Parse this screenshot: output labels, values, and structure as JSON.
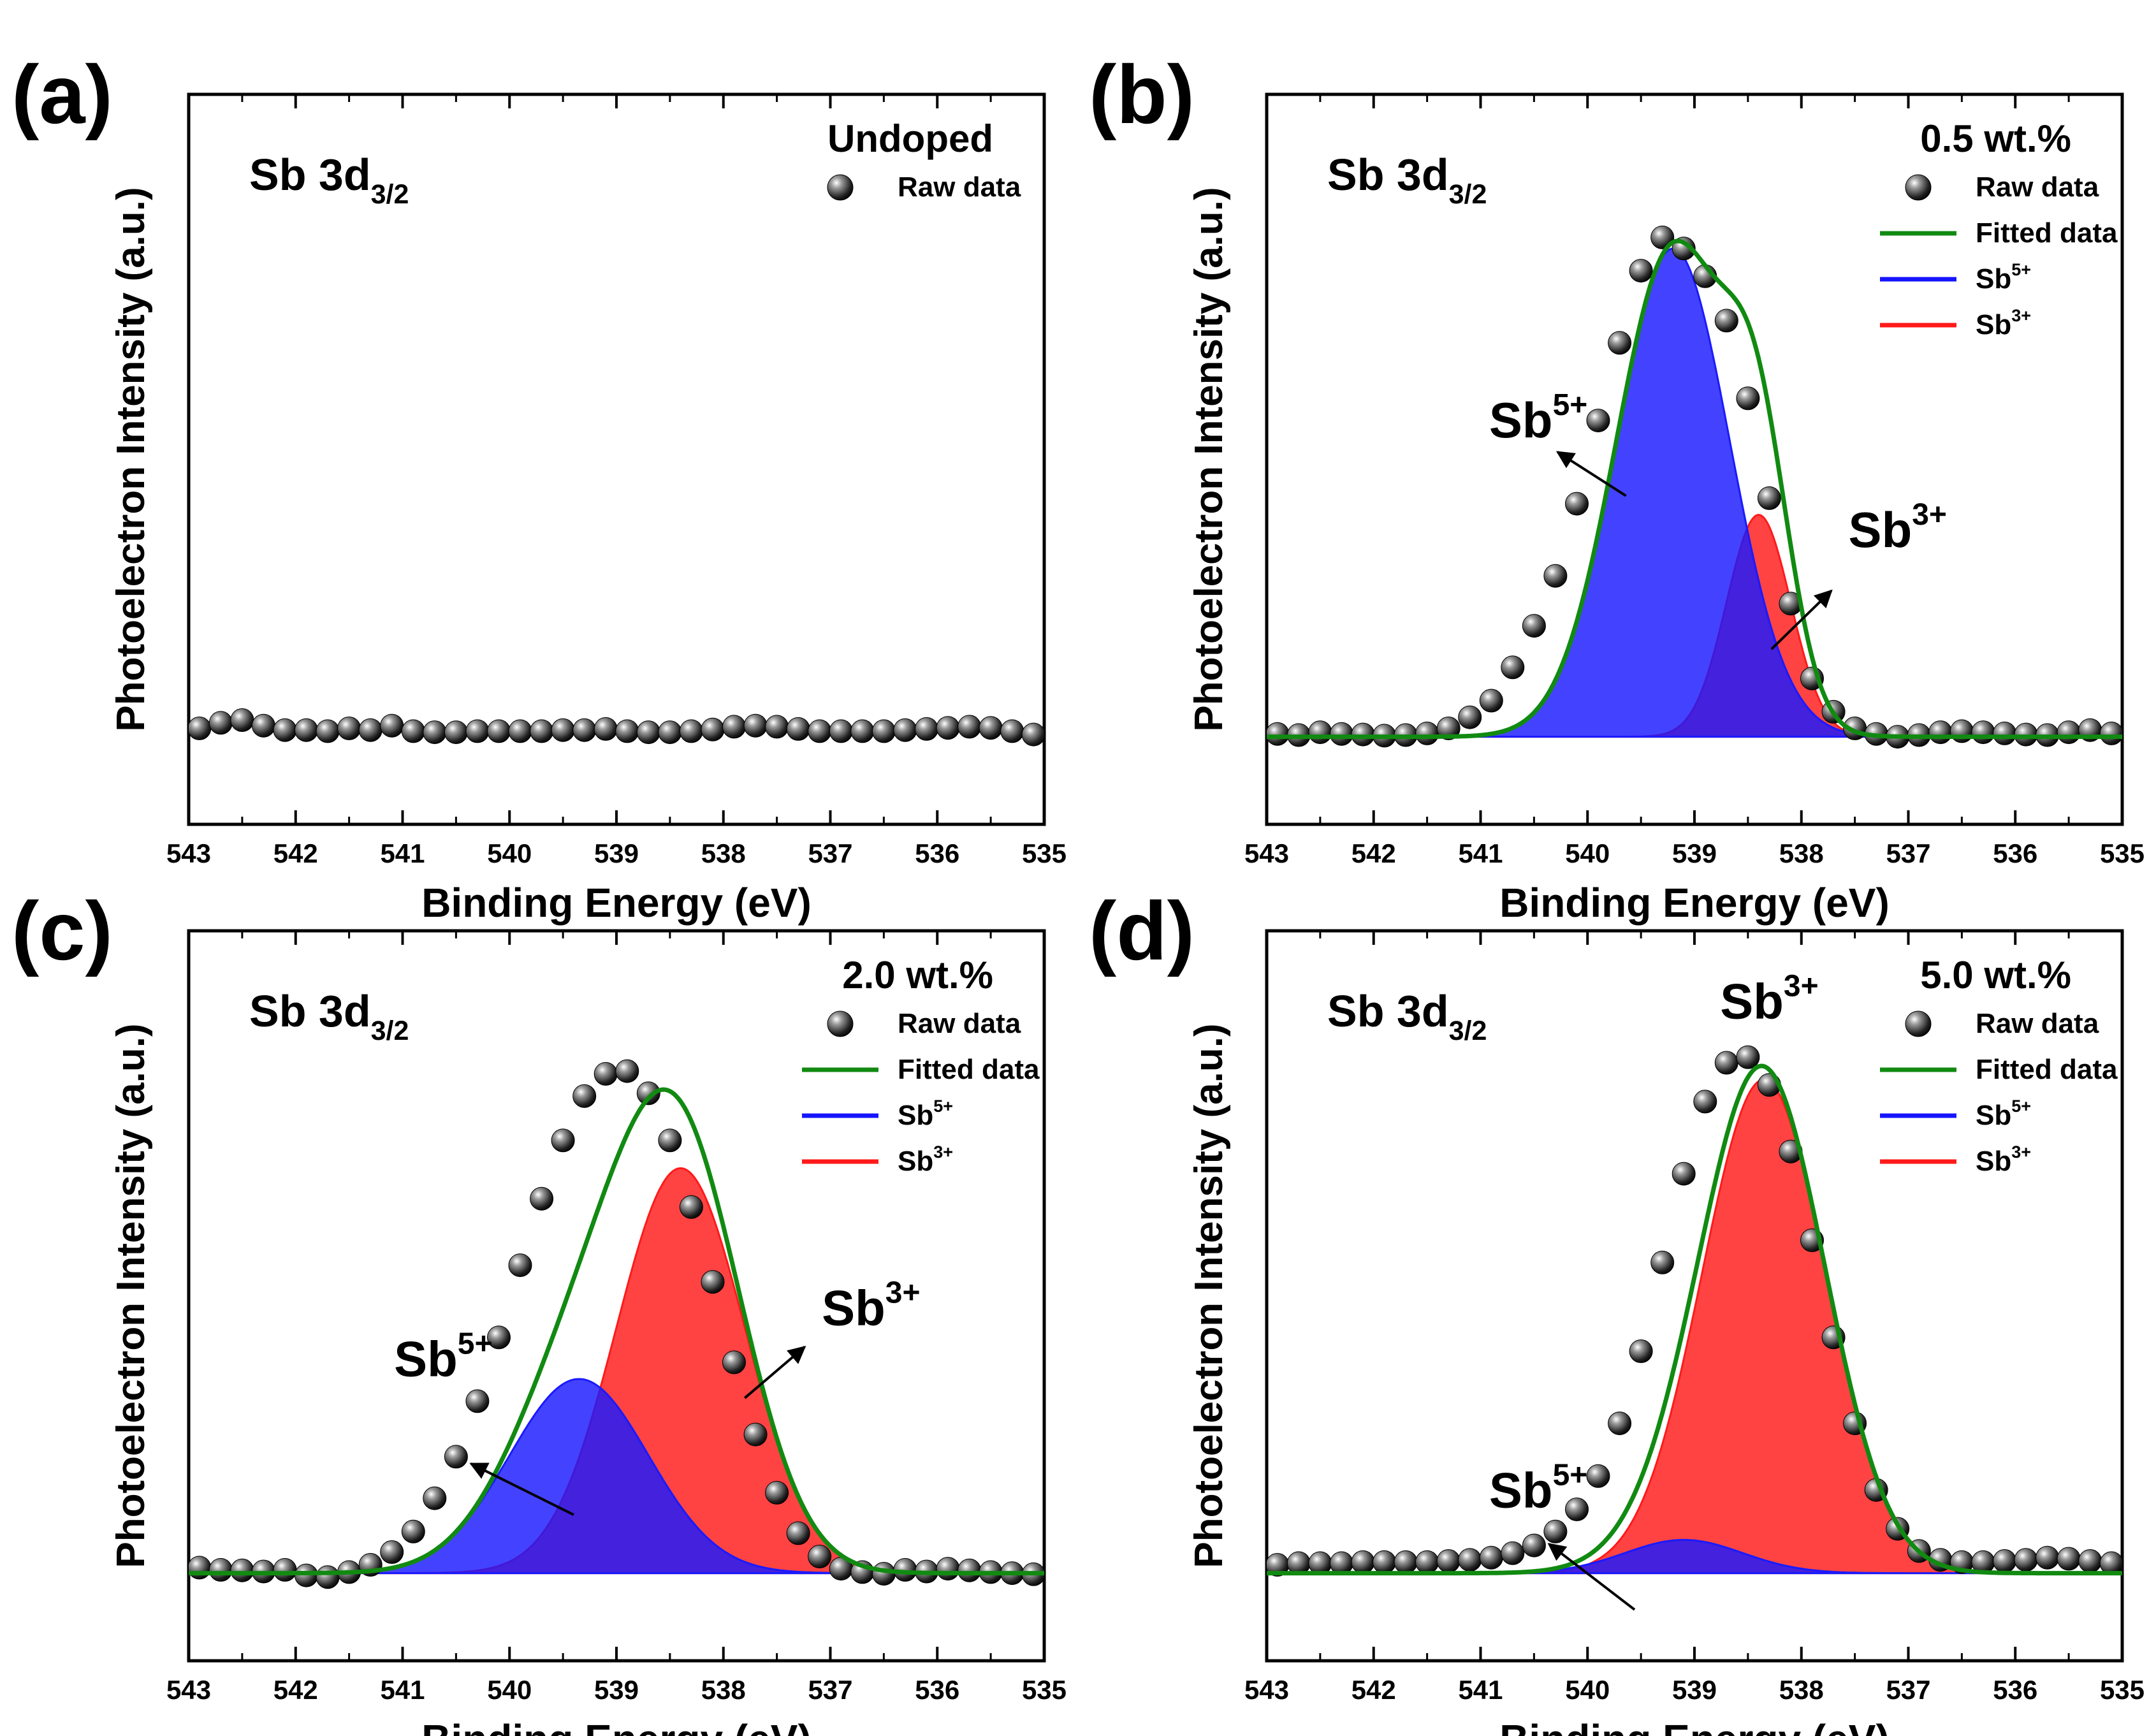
{
  "chart_data": [
    {
      "panel": "(a)",
      "type": "scatter",
      "title": "Undoped",
      "peak_label_main": "Sb 3d",
      "peak_label_sub": "3/2",
      "xlabel": "Binding Energy (eV)",
      "ylabel": "Photoelectron Intensity (a.u.)",
      "xlim": [
        543,
        535
      ],
      "ylim": [
        0,
        100
      ],
      "xticks": [
        "543",
        "542",
        "541",
        "540",
        "539",
        "538",
        "537",
        "536",
        "535"
      ],
      "legend": [
        {
          "label": "Raw data",
          "kind": "marker"
        }
      ],
      "raw_data": {
        "x": [
          542.9,
          542.7,
          542.5,
          542.3,
          542.1,
          541.9,
          541.7,
          541.5,
          541.3,
          541.1,
          540.9,
          540.7,
          540.5,
          540.3,
          540.1,
          539.9,
          539.7,
          539.5,
          539.3,
          539.1,
          538.9,
          538.7,
          538.5,
          538.3,
          538.1,
          537.9,
          537.7,
          537.5,
          537.3,
          537.1,
          536.9,
          536.7,
          536.5,
          536.3,
          536.1,
          535.9,
          535.7,
          535.5,
          535.3,
          535.1
        ],
        "y": [
          1.5,
          2.5,
          3.0,
          2.0,
          1.2,
          1.2,
          1.0,
          1.5,
          1.2,
          2.0,
          1.0,
          0.8,
          0.8,
          1.0,
          1.0,
          1.0,
          1.0,
          1.2,
          1.2,
          1.4,
          1.0,
          0.8,
          0.8,
          1.0,
          1.3,
          1.8,
          2.0,
          1.8,
          1.4,
          1.0,
          1.0,
          1.0,
          1.0,
          1.2,
          1.4,
          1.6,
          1.8,
          1.6,
          1.0,
          0.4
        ]
      }
    },
    {
      "panel": "(b)",
      "type": "scatter",
      "title": "0.5 wt.%",
      "peak_label_main": "Sb 3d",
      "peak_label_sub": "3/2",
      "xlabel": "Binding Energy (eV)",
      "ylabel": "Photoelectron Intensity (a.u.)",
      "xlim": [
        543,
        535
      ],
      "ylim": [
        0,
        100
      ],
      "xticks": [
        "543",
        "542",
        "541",
        "540",
        "539",
        "538",
        "537",
        "536",
        "535"
      ],
      "legend": [
        {
          "label": "Raw data",
          "kind": "marker",
          "sup": ""
        },
        {
          "label": "Fitted data",
          "kind": "line",
          "color": "#118a11",
          "sup": ""
        },
        {
          "label": "Sb",
          "kind": "line",
          "color": "#1515ff",
          "sup": "5+"
        },
        {
          "label": "Sb",
          "kind": "line",
          "color": "#ff1a1a",
          "sup": "3+"
        }
      ],
      "components": [
        {
          "name": "Sb5+",
          "center": 539.2,
          "height": 88,
          "sigma": 0.53,
          "color": "#1a1aff"
        },
        {
          "name": "Sb3+",
          "center": 538.4,
          "height": 40,
          "sigma": 0.3,
          "color": "#ff1a1a"
        }
      ],
      "raw_data": {
        "x": [
          542.9,
          542.7,
          542.5,
          542.3,
          542.1,
          541.9,
          541.7,
          541.5,
          541.3,
          541.1,
          540.9,
          540.7,
          540.5,
          540.3,
          540.1,
          539.9,
          539.7,
          539.5,
          539.3,
          539.1,
          538.9,
          538.7,
          538.5,
          538.3,
          538.1,
          537.9,
          537.7,
          537.5,
          537.3,
          537.1,
          536.9,
          536.7,
          536.5,
          536.3,
          536.1,
          535.9,
          535.7,
          535.5,
          535.3,
          535.1
        ],
        "y": [
          0.5,
          0.3,
          0.8,
          0.5,
          0.4,
          0.2,
          0.3,
          0.6,
          1.5,
          3.5,
          6.5,
          12.5,
          20.0,
          29.0,
          42.0,
          57.0,
          71.0,
          84.0,
          90.0,
          88.0,
          83.0,
          75.0,
          61.0,
          43.0,
          24.0,
          10.5,
          4.5,
          1.5,
          0.5,
          0.0,
          0.3,
          0.8,
          1.0,
          0.8,
          0.6,
          0.4,
          0.3,
          0.8,
          1.2,
          0.6
        ]
      },
      "annotations": [
        {
          "text": "Sb",
          "sup": "5+",
          "points_to": "Sb5+ component"
        },
        {
          "text": "Sb",
          "sup": "3+",
          "points_to": "Sb3+ component"
        }
      ]
    },
    {
      "panel": "(c)",
      "type": "scatter",
      "title": "2.0 wt.%",
      "peak_label_main": "Sb 3d",
      "peak_label_sub": "3/2",
      "xlabel": "Binding Energy (eV)",
      "ylabel": "Photoelectron Intensity (a.u.)",
      "xlim": [
        543,
        535
      ],
      "ylim": [
        0,
        100
      ],
      "xticks": [
        "543",
        "542",
        "541",
        "540",
        "539",
        "538",
        "537",
        "536",
        "535"
      ],
      "legend": [
        {
          "label": "Raw data",
          "kind": "marker",
          "sup": ""
        },
        {
          "label": "Fitted data",
          "kind": "line",
          "color": "#118a11",
          "sup": ""
        },
        {
          "label": "Sb",
          "kind": "line",
          "color": "#1515ff",
          "sup": "5+"
        },
        {
          "label": "Sb",
          "kind": "line",
          "color": "#ff1a1a",
          "sup": "3+"
        }
      ],
      "components": [
        {
          "name": "Sb5+",
          "center": 539.35,
          "height": 35,
          "sigma": 0.65,
          "color": "#1a1aff"
        },
        {
          "name": "Sb3+",
          "center": 538.4,
          "height": 73,
          "sigma": 0.6,
          "color": "#ff1a1a"
        }
      ],
      "raw_data": {
        "x": [
          542.9,
          542.7,
          542.5,
          542.3,
          542.1,
          541.9,
          541.7,
          541.5,
          541.3,
          541.1,
          540.9,
          540.7,
          540.5,
          540.3,
          540.1,
          539.9,
          539.7,
          539.5,
          539.3,
          539.1,
          538.9,
          538.7,
          538.5,
          538.3,
          538.1,
          537.9,
          537.7,
          537.5,
          537.3,
          537.1,
          536.9,
          536.7,
          536.5,
          536.3,
          536.1,
          535.9,
          535.7,
          535.5,
          535.3,
          535.1
        ],
        "y": [
          1.0,
          0.6,
          0.5,
          0.3,
          0.6,
          -0.4,
          -0.7,
          0.2,
          1.5,
          3.8,
          7.5,
          13.5,
          21.0,
          31.0,
          42.5,
          55.5,
          67.5,
          78.0,
          86.0,
          90.0,
          90.5,
          86.5,
          78.0,
          66.0,
          52.5,
          38.0,
          25.0,
          14.5,
          7.2,
          3.0,
          0.8,
          0.2,
          -0.1,
          0.6,
          0.3,
          0.8,
          0.5,
          0.2,
          0.0,
          -0.2
        ]
      },
      "annotations": [
        {
          "text": "Sb",
          "sup": "5+",
          "points_to": "Sb5+ component"
        },
        {
          "text": "Sb",
          "sup": "3+",
          "points_to": "Sb3+ component"
        }
      ]
    },
    {
      "panel": "(d)",
      "type": "scatter",
      "title": "5.0 wt.%",
      "peak_label_main": "Sb 3d",
      "peak_label_sub": "3/2",
      "xlabel": "Binding Energy (eV)",
      "ylabel": "Photoelectron Intensity (a.u.)",
      "xlim": [
        543,
        535
      ],
      "ylim": [
        0,
        100
      ],
      "xticks": [
        "543",
        "542",
        "541",
        "540",
        "539",
        "538",
        "537",
        "536",
        "535"
      ],
      "legend": [
        {
          "label": "Raw data",
          "kind": "marker",
          "sup": ""
        },
        {
          "label": "Fitted data",
          "kind": "line",
          "color": "#118a11",
          "sup": ""
        },
        {
          "label": "Sb",
          "kind": "line",
          "color": "#1515ff",
          "sup": "5+"
        },
        {
          "label": "Sb",
          "kind": "line",
          "color": "#ff1a1a",
          "sup": "3+"
        }
      ],
      "components": [
        {
          "name": "Sb5+",
          "center": 539.1,
          "height": 6,
          "sigma": 0.55,
          "color": "#1a1aff"
        },
        {
          "name": "Sb3+",
          "center": 538.35,
          "height": 89,
          "sigma": 0.58,
          "color": "#ff1a1a"
        }
      ],
      "raw_data": {
        "x": [
          542.9,
          542.7,
          542.5,
          542.3,
          542.1,
          541.9,
          541.7,
          541.5,
          541.3,
          541.1,
          540.9,
          540.7,
          540.5,
          540.3,
          540.1,
          539.9,
          539.7,
          539.5,
          539.3,
          539.1,
          538.9,
          538.7,
          538.5,
          538.3,
          538.1,
          537.9,
          537.7,
          537.5,
          537.3,
          537.1,
          536.9,
          536.7,
          536.5,
          536.3,
          536.1,
          535.9,
          535.7,
          535.5,
          535.3,
          535.1
        ],
        "y": [
          1.5,
          1.8,
          1.8,
          1.8,
          2.0,
          2.0,
          2.0,
          2.0,
          2.2,
          2.4,
          2.8,
          3.6,
          5.0,
          7.5,
          11.5,
          17.5,
          27.0,
          40.0,
          56.0,
          72.0,
          85.0,
          92.0,
          93.0,
          88.0,
          76.0,
          60.0,
          42.5,
          27.0,
          15.0,
          8.0,
          4.0,
          2.4,
          2.0,
          2.0,
          2.2,
          2.4,
          2.8,
          2.6,
          2.2,
          1.8
        ]
      },
      "annotations": [
        {
          "text": "Sb",
          "sup": "3+",
          "points_to": "Sb3+ component"
        },
        {
          "text": "Sb",
          "sup": "5+",
          "points_to": "Sb5+ component"
        }
      ]
    }
  ]
}
